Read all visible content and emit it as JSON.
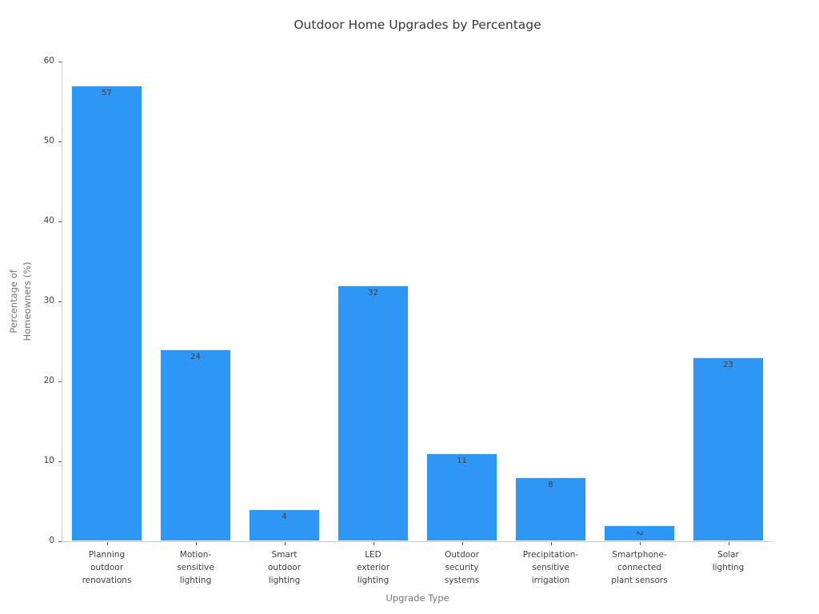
{
  "chart_data": {
    "type": "bar",
    "title": "Outdoor Home Upgrades by Percentage",
    "xlabel": "Upgrade Type",
    "ylabel": "Percentage of\nHomeowners (%)",
    "categories": [
      "Planning\noutdoor\nrenovations",
      "Motion-\nsensitive\nlighting",
      "Smart\noutdoor\nlighting",
      "LED\nexterior\nlighting",
      "Outdoor\nsecurity\nsystems",
      "Precipitation-\nsensitive\nirrigation",
      "Smartphone-\nconnected\nplant sensors",
      "Solar\nlighting"
    ],
    "values": [
      57,
      24,
      4,
      32,
      11,
      8,
      2,
      23
    ],
    "ylim": [
      0,
      60
    ],
    "yticks": [
      0,
      10,
      20,
      30,
      40,
      50,
      60
    ],
    "grid": false,
    "legend": null,
    "bar_color": "#2e96f5",
    "bar_edge_color": "#e7f3fd",
    "value_label_color": "#3f3f3f",
    "background_color": "#ffffff"
  }
}
